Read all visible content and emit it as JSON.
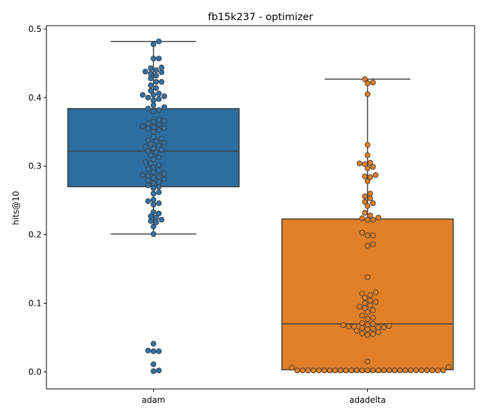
{
  "chart_data": {
    "type": "box",
    "title": "fb15k237 - optimizer",
    "xlabel": "",
    "ylabel": "hits@10",
    "ylim": [
      -0.025,
      0.505
    ],
    "yticks": [
      0.0,
      0.1,
      0.2,
      0.3,
      0.4,
      0.5
    ],
    "ytick_labels": [
      "0.0",
      "0.1",
      "0.2",
      "0.3",
      "0.4",
      "0.5"
    ],
    "grid": false,
    "categories": [
      "adam",
      "adadelta"
    ],
    "colors": [
      "#2c6e9f",
      "#e07f27"
    ],
    "point_colors": [
      "#2d73ab",
      "#ef7f1a"
    ],
    "boxes": [
      {
        "name": "adam",
        "whisker_low": 0.201,
        "q1": 0.27,
        "median": 0.322,
        "q3": 0.384,
        "whisker_high": 0.482
      },
      {
        "name": "adadelta",
        "whisker_low": 0.0,
        "q1": 0.003,
        "median": 0.07,
        "q3": 0.223,
        "whisker_high": 0.427
      }
    ],
    "points": [
      [
        0.482,
        0.478,
        0.457,
        0.457,
        0.444,
        0.443,
        0.44,
        0.438,
        0.437,
        0.435,
        0.432,
        0.428,
        0.423,
        0.423,
        0.418,
        0.414,
        0.41,
        0.406,
        0.404,
        0.404,
        0.402,
        0.4,
        0.398,
        0.396,
        0.389,
        0.386,
        0.384,
        0.382,
        0.38,
        0.368,
        0.366,
        0.365,
        0.362,
        0.361,
        0.358,
        0.357,
        0.356,
        0.355,
        0.353,
        0.35,
        0.343,
        0.34,
        0.338,
        0.336,
        0.334,
        0.332,
        0.33,
        0.328,
        0.326,
        0.324,
        0.322,
        0.32,
        0.316,
        0.313,
        0.31,
        0.306,
        0.304,
        0.302,
        0.298,
        0.296,
        0.294,
        0.291,
        0.289,
        0.287,
        0.286,
        0.285,
        0.283,
        0.281,
        0.279,
        0.277,
        0.275,
        0.272,
        0.27,
        0.268,
        0.262,
        0.26,
        0.251,
        0.249,
        0.246,
        0.244,
        0.233,
        0.231,
        0.227,
        0.225,
        0.222,
        0.22,
        0.218,
        0.212,
        0.201,
        0.041,
        0.031,
        0.03,
        0.03,
        0.011,
        0.002,
        0.001
      ],
      [
        0.427,
        0.422,
        0.421,
        0.405,
        0.331,
        0.316,
        0.305,
        0.304,
        0.303,
        0.299,
        0.297,
        0.287,
        0.285,
        0.284,
        0.278,
        0.26,
        0.256,
        0.253,
        0.248,
        0.246,
        0.242,
        0.232,
        0.228,
        0.225,
        0.224,
        0.222,
        0.222,
        0.203,
        0.199,
        0.199,
        0.186,
        0.184,
        0.138,
        0.116,
        0.114,
        0.112,
        0.108,
        0.104,
        0.102,
        0.1,
        0.097,
        0.095,
        0.093,
        0.09,
        0.087,
        0.082,
        0.079,
        0.077,
        0.071,
        0.07,
        0.069,
        0.068,
        0.067,
        0.066,
        0.066,
        0.065,
        0.065,
        0.064,
        0.063,
        0.062,
        0.06,
        0.058,
        0.056,
        0.055,
        0.054,
        0.015,
        0.007,
        0.006,
        0.002,
        0.002,
        0.002,
        0.002,
        0.002,
        0.002,
        0.002,
        0.002,
        0.002,
        0.002,
        0.002,
        0.002,
        0.002,
        0.002,
        0.002,
        0.002,
        0.002,
        0.002,
        0.002,
        0.002,
        0.002,
        0.002,
        0.002,
        0.002,
        0.002,
        0.002,
        0.002,
        0.002
      ]
    ]
  }
}
